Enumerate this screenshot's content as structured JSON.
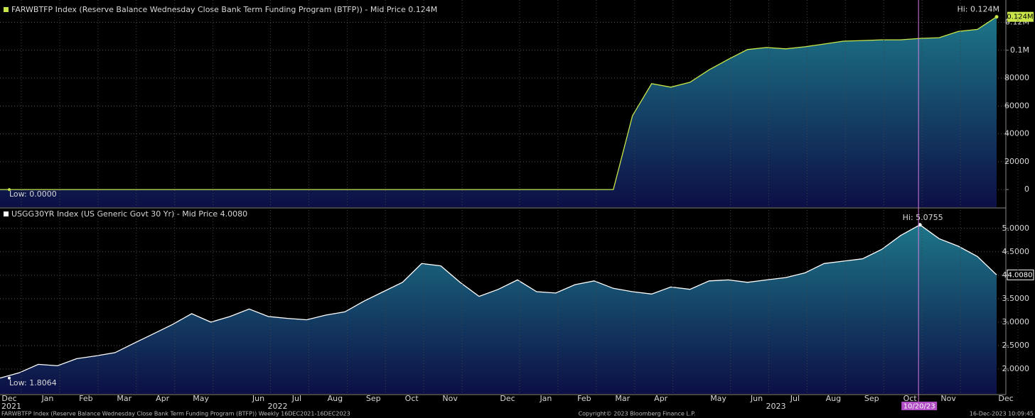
{
  "chart_data": [
    {
      "type": "area",
      "title": "FARWBTFP Index (Reserve Balance Wednesday Close Bank Term Funding Program (BTFP)) - Mid Price 0.124M",
      "series": [
        {
          "name": "FARWBTFP Index",
          "color": "#c8e64a",
          "values": [
            0,
            0,
            0,
            0,
            0,
            0,
            0,
            0,
            0,
            0,
            0,
            0,
            0,
            0,
            0,
            0,
            0,
            0,
            0,
            0,
            0,
            0,
            0,
            0,
            0,
            0,
            0,
            0,
            0,
            0,
            0,
            0,
            0,
            53000,
            76000,
            73500,
            77000,
            86000,
            93500,
            100500,
            102000,
            101000,
            102500,
            104500,
            106500,
            107000,
            107500,
            107500,
            108500,
            109000,
            113500,
            115000,
            124000
          ]
        }
      ],
      "ylim": [
        -12700,
        132000
      ],
      "yticks": [
        0,
        20000,
        40000,
        60000,
        80000,
        {
          "value": 100000,
          "label": "0.1M"
        },
        {
          "value": 120000,
          "label": "0.12M"
        }
      ],
      "hi_label": "Hi: 0.124M",
      "low_label": "Low: 0.0000",
      "last_label": "0.124M",
      "grid": true
    },
    {
      "type": "area",
      "title": "USGG30YR Index (US Generic Govt 30 Yr) - Mid Price 4.0080",
      "categories": [
        "Dec",
        null,
        "Jan",
        null,
        "Feb",
        null,
        "Mar",
        null,
        "Apr",
        null,
        "May",
        null,
        null,
        "Jun",
        null,
        "Jul",
        null,
        "Aug",
        null,
        "Sep",
        null,
        "Oct",
        null,
        "Nov",
        null,
        null,
        "Dec",
        null,
        "Jan",
        null,
        "Feb",
        null,
        "Mar",
        null,
        "Apr",
        null,
        null,
        "May",
        null,
        "Jun",
        null,
        "Jul",
        null,
        "Aug",
        null,
        "Sep",
        null,
        "Oct",
        null,
        "Nov",
        null,
        null,
        "Dec"
      ],
      "year_categories": [
        "2021",
        null,
        null,
        null,
        null,
        null,
        null,
        null,
        null,
        null,
        null,
        null,
        null,
        null,
        "2022",
        null,
        null,
        null,
        null,
        null,
        null,
        null,
        null,
        null,
        null,
        null,
        null,
        null,
        null,
        null,
        null,
        null,
        null,
        null,
        null,
        null,
        null,
        null,
        null,
        null,
        "2023",
        null,
        null,
        null,
        null,
        null,
        null,
        null,
        null,
        null,
        null,
        null,
        null
      ],
      "series": [
        {
          "name": "USGG30YR Index",
          "color": "#ffffff",
          "values": [
            1.8064,
            1.92,
            2.1,
            2.07,
            2.22,
            2.28,
            2.35,
            2.55,
            2.75,
            2.95,
            3.18,
            3.0,
            3.12,
            3.28,
            3.12,
            3.08,
            3.05,
            3.15,
            3.22,
            3.45,
            3.65,
            3.85,
            4.25,
            4.2,
            3.85,
            3.55,
            3.7,
            3.9,
            3.65,
            3.62,
            3.8,
            3.88,
            3.72,
            3.65,
            3.6,
            3.75,
            3.7,
            3.88,
            3.9,
            3.85,
            3.9,
            3.95,
            4.05,
            4.25,
            4.3,
            4.35,
            4.55,
            4.85,
            5.0755,
            4.78,
            4.62,
            4.4,
            4.008
          ]
        }
      ],
      "ylim": [
        1.47,
        5.39
      ],
      "yticks": [
        {
          "value": 2,
          "label": "2.0000"
        },
        {
          "value": 2.5,
          "label": "2.5000"
        },
        {
          "value": 3,
          "label": "3.0000"
        },
        {
          "value": 3.5,
          "label": "3.5000"
        },
        {
          "value": 4,
          "label": "4.0000"
        },
        {
          "value": 4.5,
          "label": "4.5000"
        },
        {
          "value": 5,
          "label": "5.0000"
        }
      ],
      "hi_label": "Hi: 5.0755",
      "low_label": "Low: 1.8064",
      "last_label": "4.0080",
      "highlight_date": "10/20/23",
      "grid": true
    }
  ],
  "footer": {
    "left": "FARWBTFP Index (Reserve Balance Wednesday Close Bank Term Funding Program (BTFP))  Weekly 16DEC2021-16DEC2023",
    "center": "Copyright© 2023 Bloomberg Finance L.P.",
    "right": "16-Dec-2023 10:09:45"
  }
}
